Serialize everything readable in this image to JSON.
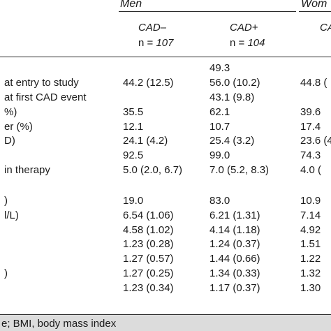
{
  "table": {
    "groups": [
      {
        "label": "Men"
      },
      {
        "label": "Wom"
      }
    ],
    "columns": [
      {
        "name": "CAD–",
        "n_prefix": "n = ",
        "n_value": "107"
      },
      {
        "name": "CAD+",
        "n_prefix": "n = ",
        "n_value": "104"
      },
      {
        "name": "CA",
        "n_prefix": "",
        "n_value": ""
      }
    ],
    "rows": [
      {
        "label": "",
        "values": [
          "",
          "49.3",
          ""
        ]
      },
      {
        "label": "at entry to study",
        "values": [
          "44.2 (12.5)",
          "56.0 (10.2)",
          "44.8 ("
        ]
      },
      {
        "label": "at first CAD event",
        "values": [
          "",
          "43.1 (9.8)",
          ""
        ]
      },
      {
        "label": "%)",
        "values": [
          "35.5",
          "62.1",
          "39.6"
        ]
      },
      {
        "label": "er (%)",
        "values": [
          "12.1",
          "10.7",
          "17.4"
        ]
      },
      {
        "label": "D)",
        "values": [
          "24.1 (4.2)",
          "25.4 (3.2)",
          "23.6 (4"
        ]
      },
      {
        "label": "",
        "values": [
          "92.5",
          "99.0",
          "74.3"
        ]
      },
      {
        "label": "in therapy",
        "values": [
          "5.0 (2.0, 6.7)",
          "7.0 (5.2, 8.3)",
          "4.0 ("
        ]
      },
      {
        "label": ")",
        "values": [
          "19.0",
          "83.0",
          "10.9"
        ]
      },
      {
        "label": "l/L)",
        "values": [
          "6.54 (1.06)",
          "6.21 (1.31)",
          "7.14"
        ]
      },
      {
        "label": "",
        "values": [
          "4.58 (1.02)",
          "4.14 (1.18)",
          "4.92"
        ]
      },
      {
        "label": "",
        "values": [
          "1.23 (0.28)",
          "1.24 (0.37)",
          "1.51"
        ]
      },
      {
        "label": "",
        "values": [
          "1.27 (0.57)",
          "1.44 (0.66)",
          "1.22"
        ]
      },
      {
        "label": ")",
        "values": [
          "1.27 (0.25)",
          "1.34 (0.33)",
          "1.32"
        ]
      },
      {
        "label": "",
        "values": [
          "1.23 (0.34)",
          "1.17 (0.37)",
          "1.30"
        ]
      }
    ]
  },
  "footer": {
    "text": "e; BMI, body mass index"
  }
}
